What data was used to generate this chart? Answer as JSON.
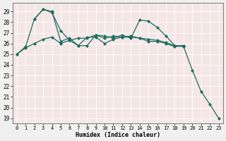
{
  "xlabel": "Humidex (Indice chaleur)",
  "bg_color": "#f5e6e6",
  "axes_bg": "#f5e6e6",
  "grid_color": "#ffffff",
  "line_color": "#1a6b5e",
  "xlim": [
    -0.5,
    23.5
  ],
  "ylim": [
    18.5,
    29.8
  ],
  "xticks": [
    0,
    1,
    2,
    3,
    4,
    5,
    6,
    7,
    8,
    9,
    10,
    11,
    12,
    13,
    14,
    15,
    16,
    17,
    18,
    19,
    20,
    21,
    22,
    23
  ],
  "yticks": [
    19,
    20,
    21,
    22,
    23,
    24,
    25,
    26,
    27,
    28,
    29
  ],
  "series1_x": [
    0,
    1,
    2,
    3,
    4,
    5,
    6,
    7,
    8,
    9,
    10,
    11,
    12,
    13,
    14,
    15,
    16,
    17,
    18,
    19
  ],
  "series1_y": [
    25.0,
    25.7,
    28.3,
    29.2,
    29.0,
    26.2,
    26.5,
    25.8,
    26.6,
    26.6,
    26.0,
    26.4,
    26.6,
    26.6,
    26.5,
    26.2,
    26.2,
    26.0,
    25.7,
    25.8
  ],
  "series2_x": [
    2,
    3,
    4,
    5,
    6,
    7,
    8,
    9,
    10,
    11,
    12,
    13,
    14,
    15,
    16,
    17,
    18,
    19
  ],
  "series2_y": [
    28.3,
    29.2,
    28.9,
    27.2,
    26.3,
    25.8,
    25.8,
    26.8,
    26.7,
    26.5,
    26.8,
    26.5,
    28.2,
    28.1,
    27.5,
    26.7,
    25.8,
    25.8
  ],
  "series3_x": [
    0,
    1,
    2,
    3,
    4,
    5,
    6,
    7,
    8,
    9,
    10,
    11,
    12,
    13,
    14,
    15,
    16,
    17,
    18,
    19,
    20,
    21,
    22,
    23
  ],
  "series3_y": [
    25.0,
    25.6,
    26.0,
    26.4,
    26.6,
    26.0,
    26.3,
    26.5,
    26.5,
    26.8,
    26.5,
    26.7,
    26.6,
    26.7,
    26.5,
    26.4,
    26.3,
    26.1,
    25.8,
    25.7,
    23.5,
    21.5,
    20.3,
    19.0
  ]
}
